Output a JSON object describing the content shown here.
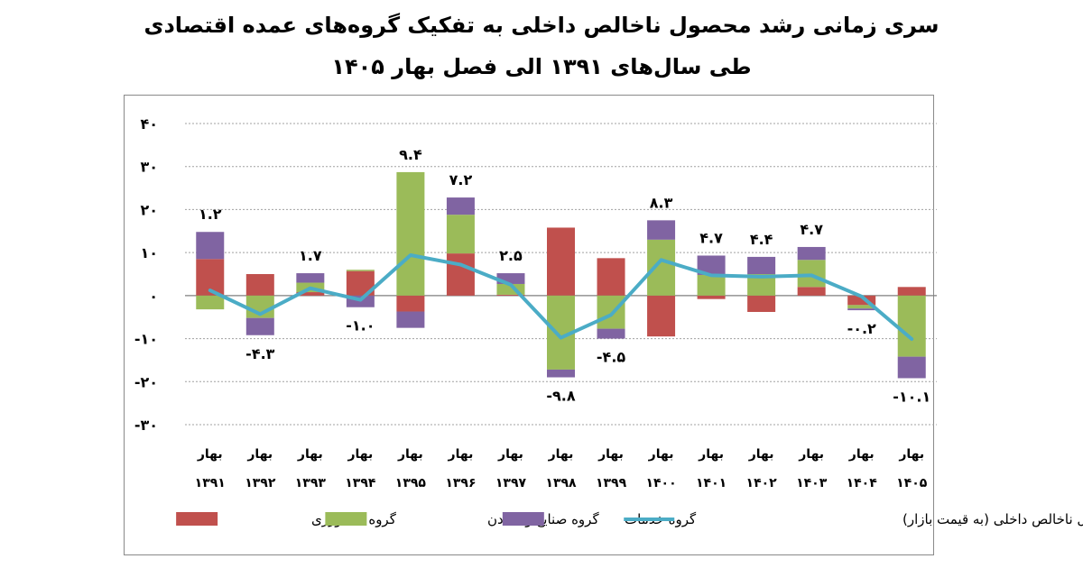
{
  "title_line1": "سری زمانی رشد محصول ناخالص داخلی به تفکیک گروه‌های عمده اقتصادی",
  "title_line2": "طی سال‌های ۱۳۹۱ الی فصل بهار ۱۴۰۵",
  "chart_data": {
    "type": "bar",
    "stacked": true,
    "categories": [
      [
        "بهار",
        "۱۳۹۱"
      ],
      [
        "بهار",
        "۱۳۹۲"
      ],
      [
        "بهار",
        "۱۳۹۳"
      ],
      [
        "بهار",
        "۱۳۹۴"
      ],
      [
        "بهار",
        "۱۳۹۵"
      ],
      [
        "بهار",
        "۱۳۹۶"
      ],
      [
        "بهار",
        "۱۳۹۷"
      ],
      [
        "بهار",
        "۱۳۹۸"
      ],
      [
        "بهار",
        "۱۳۹۹"
      ],
      [
        "بهار",
        "۱۴۰۰"
      ],
      [
        "بهار",
        "۱۴۰۱"
      ],
      [
        "بهار",
        "۱۴۰۲"
      ],
      [
        "بهار",
        "۱۴۰۳"
      ],
      [
        "بهار",
        "۱۴۰۴"
      ],
      [
        "بهار",
        "۱۴۰۵"
      ]
    ],
    "ylim": [
      -30,
      40
    ],
    "yticks": [
      40,
      30,
      20,
      10,
      0,
      -10,
      -20,
      -30
    ],
    "ytick_labels": [
      "۴۰",
      "۳۰",
      "۲۰",
      "۱۰",
      "۰",
      "‎-۱۰",
      "‎-۲۰",
      "‎-۳۰"
    ],
    "grid": true,
    "series": [
      {
        "name": "گروه کشاورزی",
        "color": "#c0504d",
        "values": [
          8.5,
          5.0,
          0.8,
          5.7,
          -3.7,
          9.8,
          0.2,
          15.8,
          8.7,
          -9.5,
          -0.8,
          -3.8,
          2.0,
          -2.2,
          2.0
        ]
      },
      {
        "name": "گروه صنایع و معادن",
        "color": "#9bbb59",
        "values": [
          -3.2,
          -5.2,
          2.2,
          0.3,
          28.7,
          9.0,
          2.5,
          -17.2,
          -7.7,
          13.0,
          4.8,
          5.0,
          6.3,
          -0.8,
          -14.2
        ]
      },
      {
        "name": "گروه خدمات",
        "color": "#8064a2",
        "values": [
          6.3,
          -4.0,
          2.2,
          -2.7,
          -3.8,
          4.0,
          2.5,
          -1.8,
          -2.3,
          4.5,
          4.5,
          4.0,
          3.0,
          -0.4,
          -5.0
        ]
      }
    ],
    "line": {
      "name": "محصول ناخالص داخلی (به قیمت بازار)",
      "color": "#4bacc6",
      "values": [
        1.2,
        -4.3,
        1.7,
        -1.0,
        9.4,
        7.2,
        2.5,
        -9.8,
        -4.5,
        8.3,
        4.7,
        4.4,
        4.7,
        -0.2,
        -10.1
      ]
    },
    "data_labels": [
      "۱.۲",
      "‎-۴.۳",
      "۱.۷",
      "‎-۱.۰",
      "۹.۴",
      "۷.۲",
      "۲.۵",
      "‎-۹.۸",
      "‎-۴.۵",
      "۸.۳",
      "۴.۷",
      "۴.۴",
      "۴.۷",
      "‎-۰.۲",
      "‎-۱۰.۱"
    ],
    "legend_position": "bottom"
  }
}
